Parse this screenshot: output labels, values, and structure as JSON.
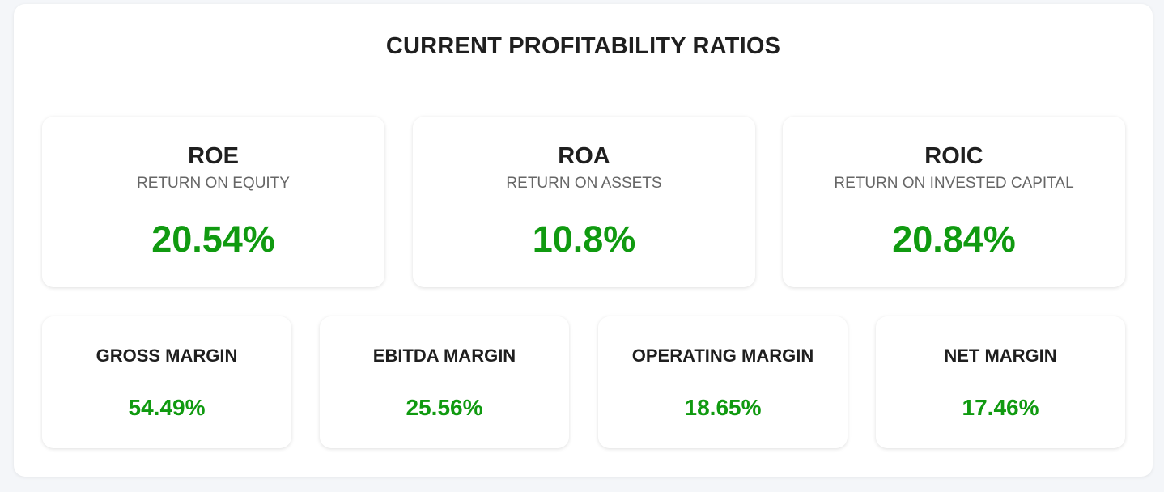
{
  "title": "CURRENT PROFITABILITY RATIOS",
  "accent_color": "#109a10",
  "primary_ratios": [
    {
      "abbr": "ROE",
      "full": "RETURN ON EQUITY",
      "value": "20.54%"
    },
    {
      "abbr": "ROA",
      "full": "RETURN ON ASSETS",
      "value": "10.8%"
    },
    {
      "abbr": "ROIC",
      "full": "RETURN ON INVESTED CAPITAL",
      "value": "20.84%"
    }
  ],
  "margins": [
    {
      "label": "GROSS MARGIN",
      "value": "54.49%"
    },
    {
      "label": "EBITDA MARGIN",
      "value": "25.56%"
    },
    {
      "label": "OPERATING MARGIN",
      "value": "18.65%"
    },
    {
      "label": "NET MARGIN",
      "value": "17.46%"
    }
  ]
}
